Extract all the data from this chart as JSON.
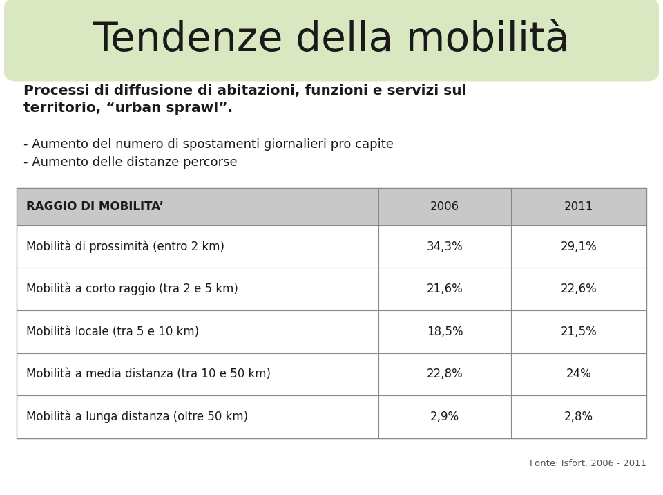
{
  "title": "Tendenze della mobilità",
  "title_bg_color": "#d9e8c0",
  "subtitle_bold": "Processi di diffusione di abitazioni, funzioni e servizi sul\nterritorio, “urban sprawl”.",
  "bullet1": "- Aumento del numero di spostamenti giornalieri pro capite",
  "bullet2": "- Aumento delle distanze percorse",
  "table_header": [
    "RAGGIO DI MOBILITA’",
    "2006",
    "2011"
  ],
  "table_rows": [
    [
      "Mobilità di prossimità (entro 2 km)",
      "34,3%",
      "29,1%"
    ],
    [
      "Mobilità a corto raggio (tra 2 e 5 km)",
      "21,6%",
      "22,6%"
    ],
    [
      "Mobilità locale (tra 5 e 10 km)",
      "18,5%",
      "21,5%"
    ],
    [
      "Mobilità a media distanza (tra 10 e 50 km)",
      "22,8%",
      "24%"
    ],
    [
      "Mobilità a lunga distanza (oltre 50 km)",
      "2,9%",
      "2,8%"
    ]
  ],
  "table_header_bg": "#c8c8c8",
  "table_row_bg": "#ffffff",
  "table_line_color": "#888888",
  "footer": "Fonte: Isfort, 2006 - 2011",
  "bg_color": "#ffffff",
  "text_color": "#1a1a1a",
  "col_split1": 0.575,
  "col_split2": 0.785
}
